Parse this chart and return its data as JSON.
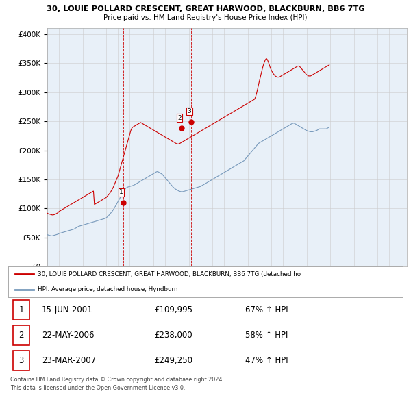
{
  "title1": "30, LOUIE POLLARD CRESCENT, GREAT HARWOOD, BLACKBURN, BB6 7TG",
  "title2": "Price paid vs. HM Land Registry's House Price Index (HPI)",
  "red_label": "30, LOUIE POLLARD CRESCENT, GREAT HARWOOD, BLACKBURN, BB6 7TG (detached ho",
  "blue_label": "HPI: Average price, detached house, Hyndburn",
  "transactions": [
    {
      "num": 1,
      "date": "15-JUN-2001",
      "price": 109995,
      "pct": "67%",
      "dir": "↑"
    },
    {
      "num": 2,
      "date": "22-MAY-2006",
      "price": 238000,
      "pct": "58%",
      "dir": "↑"
    },
    {
      "num": 3,
      "date": "23-MAR-2007",
      "price": 249250,
      "pct": "47%",
      "dir": "↑"
    }
  ],
  "vline_dates": [
    2001.458,
    2006.388,
    2007.225
  ],
  "actual_years": [
    2001.458,
    2006.388,
    2007.225
  ],
  "actual_prices": [
    109995,
    238000,
    249250
  ],
  "footnote1": "Contains HM Land Registry data © Crown copyright and database right 2024.",
  "footnote2": "This data is licensed under the Open Government Licence v3.0.",
  "ylim": [
    0,
    410000
  ],
  "xlim": [
    1995.0,
    2025.5
  ],
  "red_color": "#cc0000",
  "blue_color": "#7799bb",
  "fill_color": "#ddeeff",
  "vline_color": "#cc0000",
  "grid_color": "#cccccc",
  "background_color": "#ffffff",
  "chart_bg_color": "#e8f0f8",
  "hpi_data_monthly": [
    55000,
    54500,
    54000,
    53500,
    53000,
    53000,
    53500,
    54000,
    54500,
    55000,
    55500,
    56000,
    57000,
    57500,
    58000,
    58500,
    59000,
    59500,
    60000,
    60500,
    61000,
    61500,
    62000,
    62500,
    63000,
    63500,
    64000,
    64500,
    65500,
    66500,
    67500,
    68500,
    69500,
    70000,
    70500,
    71000,
    71500,
    72000,
    72500,
    73000,
    73500,
    74000,
    74500,
    75000,
    75500,
    76000,
    76500,
    77000,
    77500,
    78000,
    78500,
    79000,
    79500,
    80000,
    80500,
    81000,
    81500,
    82000,
    82500,
    83000,
    84000,
    85500,
    87000,
    89000,
    91000,
    93000,
    95000,
    97500,
    100000,
    103000,
    106000,
    109000,
    112000,
    115000,
    118000,
    121000,
    124000,
    127000,
    130000,
    133000,
    135000,
    136000,
    137000,
    137500,
    138000,
    138500,
    139000,
    139500,
    140000,
    141000,
    142000,
    143000,
    144000,
    145000,
    146000,
    147000,
    148000,
    149000,
    150000,
    151000,
    152000,
    153000,
    154000,
    155000,
    156000,
    157000,
    158000,
    159000,
    160000,
    161000,
    162000,
    163000,
    163500,
    163000,
    162000,
    161000,
    160000,
    159000,
    157000,
    155000,
    153000,
    151000,
    149000,
    147000,
    145000,
    143000,
    141000,
    139000,
    137000,
    135500,
    134000,
    133000,
    132000,
    131000,
    130000,
    129500,
    129000,
    129000,
    129000,
    129500,
    130000,
    130500,
    131000,
    131500,
    132000,
    132500,
    133000,
    133500,
    134000,
    134500,
    135000,
    135500,
    136000,
    136500,
    137000,
    137500,
    138000,
    139000,
    140000,
    141000,
    142000,
    143000,
    144000,
    145000,
    146000,
    147000,
    148000,
    149000,
    150000,
    151000,
    152000,
    153000,
    154000,
    155000,
    156000,
    157000,
    158000,
    159000,
    160000,
    161000,
    162000,
    163000,
    164000,
    165000,
    166000,
    167000,
    168000,
    169000,
    170000,
    171000,
    172000,
    173000,
    174000,
    175000,
    176000,
    177000,
    178000,
    179000,
    180000,
    181000,
    182000,
    184000,
    186000,
    188000,
    190000,
    192000,
    194000,
    196000,
    198000,
    200000,
    202000,
    204000,
    206000,
    208000,
    210000,
    212000,
    213000,
    214000,
    215000,
    216000,
    217000,
    218000,
    219000,
    220000,
    221000,
    222000,
    223000,
    224000,
    225000,
    226000,
    227000,
    228000,
    229000,
    230000,
    231000,
    232000,
    233000,
    234000,
    235000,
    236000,
    237000,
    238000,
    239000,
    240000,
    241000,
    242000,
    243000,
    244000,
    245000,
    246000,
    246500,
    247000,
    246000,
    245000,
    244000,
    243000,
    242000,
    241000,
    240000,
    239000,
    238000,
    237000,
    236000,
    235000,
    234000,
    233500,
    233000,
    232500,
    232000,
    232000,
    232000,
    232500,
    233000,
    233500,
    234000,
    235000,
    236000,
    237000,
    237000,
    237000,
    237000,
    237000,
    237000,
    237000,
    237000,
    238000,
    239000,
    240000
  ],
  "red_data_monthly": [
    92000,
    91000,
    90500,
    90000,
    89500,
    89000,
    89000,
    89500,
    90000,
    91000,
    92000,
    93000,
    95000,
    96000,
    97000,
    98000,
    99000,
    100000,
    101000,
    102000,
    103000,
    104000,
    105000,
    106000,
    107000,
    108000,
    109000,
    110000,
    111000,
    112000,
    113000,
    114000,
    115000,
    116000,
    117000,
    118000,
    119000,
    120000,
    121000,
    122000,
    123000,
    124000,
    125000,
    126000,
    127000,
    128000,
    129000,
    130000,
    107000,
    108000,
    109000,
    110000,
    111000,
    112000,
    113000,
    114000,
    115000,
    116000,
    117000,
    118000,
    119000,
    121000,
    123000,
    125000,
    127000,
    130000,
    133000,
    136000,
    140000,
    144000,
    148000,
    152000,
    156000,
    162000,
    168000,
    174000,
    180000,
    186000,
    192000,
    198000,
    204000,
    210000,
    216000,
    222000,
    228000,
    234000,
    238000,
    240000,
    241000,
    242000,
    243000,
    244000,
    245000,
    246000,
    247000,
    248000,
    247000,
    246000,
    245000,
    244000,
    243000,
    242000,
    241000,
    240000,
    239000,
    238000,
    237000,
    236000,
    235000,
    234000,
    233000,
    232000,
    231000,
    230000,
    229000,
    228000,
    227000,
    226000,
    225000,
    224000,
    223000,
    222000,
    221000,
    220000,
    219000,
    218000,
    217000,
    216000,
    215000,
    214000,
    213000,
    212000,
    211000,
    211000,
    211000,
    212000,
    213000,
    214000,
    215000,
    216000,
    217000,
    218000,
    219000,
    220000,
    221000,
    222000,
    223000,
    224000,
    225000,
    226000,
    227000,
    228000,
    229000,
    230000,
    231000,
    232000,
    233000,
    234000,
    235000,
    236000,
    237000,
    238000,
    239000,
    240000,
    241000,
    242000,
    243000,
    244000,
    245000,
    246000,
    247000,
    248000,
    249000,
    250000,
    251000,
    252000,
    253000,
    254000,
    255000,
    256000,
    257000,
    258000,
    259000,
    260000,
    261000,
    262000,
    263000,
    264000,
    265000,
    266000,
    267000,
    268000,
    269000,
    270000,
    271000,
    272000,
    273000,
    274000,
    275000,
    276000,
    277000,
    278000,
    279000,
    280000,
    281000,
    282000,
    283000,
    284000,
    285000,
    286000,
    287000,
    288000,
    292000,
    298000,
    305000,
    313000,
    320000,
    327000,
    334000,
    341000,
    347000,
    352000,
    356000,
    358000,
    356000,
    352000,
    347000,
    342000,
    338000,
    335000,
    332000,
    330000,
    328000,
    327000,
    326000,
    326000,
    326000,
    327000,
    328000,
    329000,
    330000,
    331000,
    332000,
    333000,
    334000,
    335000,
    336000,
    337000,
    338000,
    339000,
    340000,
    341000,
    342000,
    343000,
    344000,
    345000,
    345000,
    344000,
    342000,
    340000,
    338000,
    336000,
    334000,
    332000,
    330000,
    329000,
    328000,
    328000,
    328000,
    329000,
    330000,
    331000,
    332000,
    333000,
    334000,
    335000,
    336000,
    337000,
    338000,
    339000,
    340000,
    341000,
    342000,
    343000,
    344000,
    345000,
    346000,
    347000
  ]
}
